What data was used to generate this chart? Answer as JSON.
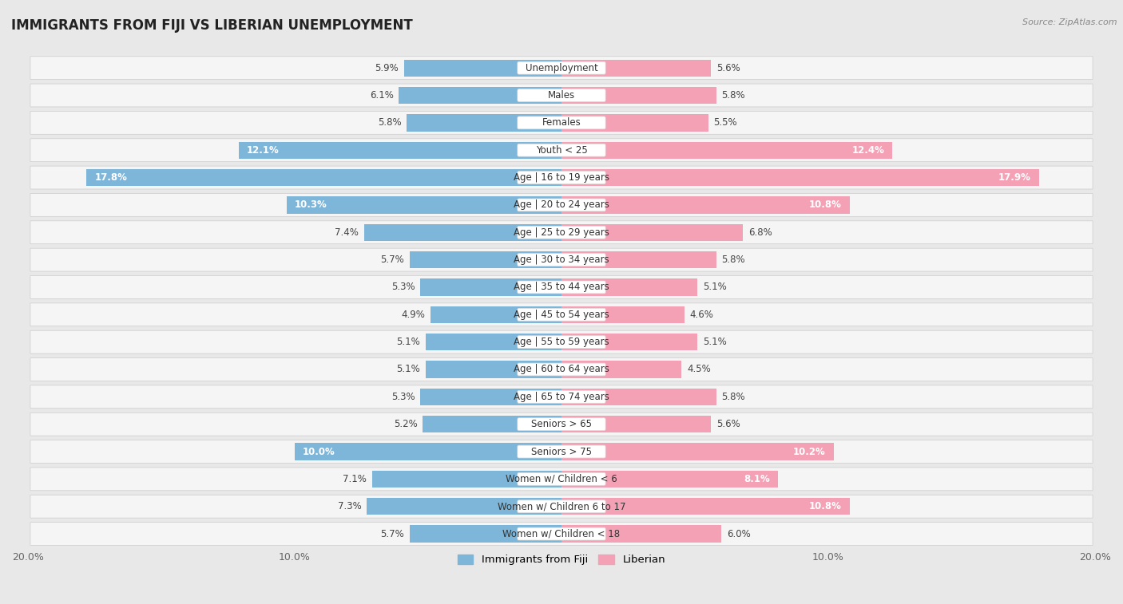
{
  "title": "IMMIGRANTS FROM FIJI VS LIBERIAN UNEMPLOYMENT",
  "source": "Source: ZipAtlas.com",
  "categories": [
    "Unemployment",
    "Males",
    "Females",
    "Youth < 25",
    "Age | 16 to 19 years",
    "Age | 20 to 24 years",
    "Age | 25 to 29 years",
    "Age | 30 to 34 years",
    "Age | 35 to 44 years",
    "Age | 45 to 54 years",
    "Age | 55 to 59 years",
    "Age | 60 to 64 years",
    "Age | 65 to 74 years",
    "Seniors > 65",
    "Seniors > 75",
    "Women w/ Children < 6",
    "Women w/ Children 6 to 17",
    "Women w/ Children < 18"
  ],
  "fiji_values": [
    5.9,
    6.1,
    5.8,
    12.1,
    17.8,
    10.3,
    7.4,
    5.7,
    5.3,
    4.9,
    5.1,
    5.1,
    5.3,
    5.2,
    10.0,
    7.1,
    7.3,
    5.7
  ],
  "liberian_values": [
    5.6,
    5.8,
    5.5,
    12.4,
    17.9,
    10.8,
    6.8,
    5.8,
    5.1,
    4.6,
    5.1,
    4.5,
    5.8,
    5.6,
    10.2,
    8.1,
    10.8,
    6.0
  ],
  "fiji_color": "#7eb6d9",
  "liberian_color": "#f4a0b5",
  "background_color": "#e8e8e8",
  "row_bg_color": "#f5f5f5",
  "axis_max": 20.0,
  "bar_height": 0.62,
  "title_fontsize": 12,
  "label_fontsize": 8.5,
  "value_fontsize": 8.5,
  "value_inside_threshold": 8.0
}
